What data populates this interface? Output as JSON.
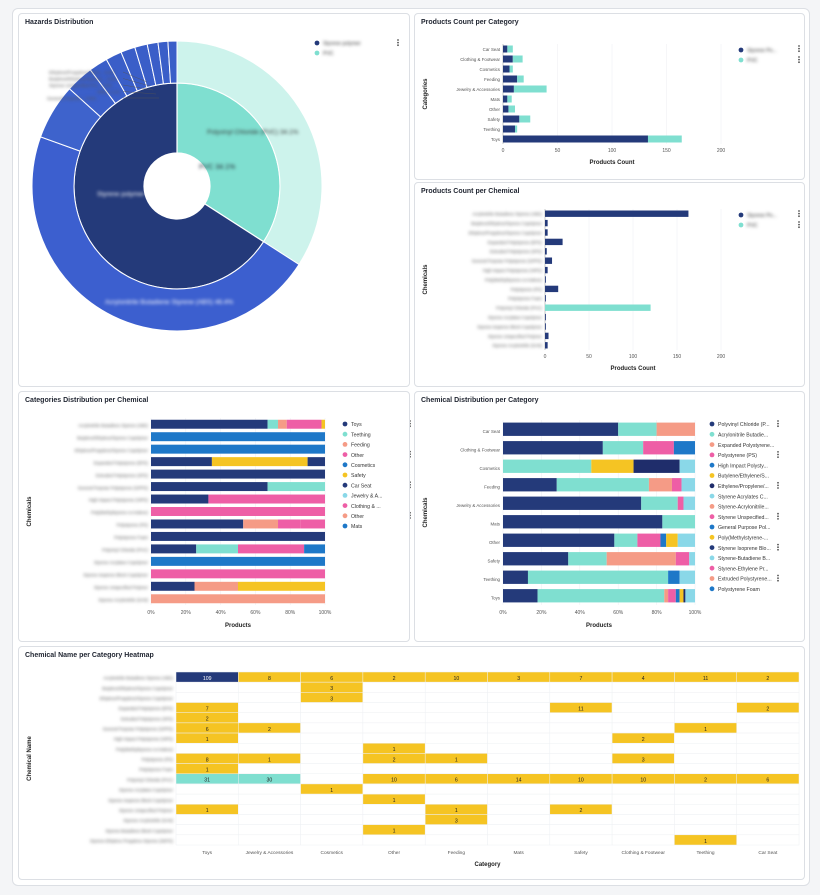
{
  "colors": {
    "navy": "#243a7a",
    "teal": "#7fdfd0",
    "salmon": "#f59b86",
    "pink": "#ee5ea6",
    "yellow": "#f5c423",
    "blue": "#1e78c8",
    "cyan": "#8ad8e8",
    "lightteal": "#cdf3ec",
    "midblue": "#3c5fcf",
    "dark": "#1f2d6b",
    "purple": "#9b6fd0"
  },
  "panels": {
    "hazards": "Hazards Distribution",
    "cat_count": "Products Count per Category",
    "chem_count": "Products Count per Chemical",
    "cat_dist": "Categories Distribution per Chemical",
    "chem_dist": "Chemical Distribution per Category",
    "heatmap": "Chemical Name per Category Heatmap"
  },
  "chart_data": [
    {
      "id": "hazards",
      "type": "pie",
      "title": "Hazards Distribution",
      "legend": [
        "Styrene polymer",
        "PVC"
      ],
      "inner": [
        {
          "label": "Styrene polymer",
          "value": 65.9
        },
        {
          "label": "PVC",
          "value": 34.1
        }
      ],
      "outer": [
        {
          "label": "Acrylonitrile Butadiene Styrene (ABS)",
          "value": 46.4
        },
        {
          "label": "Polyvinyl Chloride (PVC)",
          "value": 34.1
        },
        {
          "label": "",
          "value": 6.2
        },
        {
          "label": "",
          "value": 3.1
        },
        {
          "label": "",
          "value": 2.1
        },
        {
          "label": "",
          "value": 1.8
        },
        {
          "label": "",
          "value": 1.6
        },
        {
          "label": "",
          "value": 1.4
        },
        {
          "label": "",
          "value": 1.2
        },
        {
          "label": "",
          "value": 1.1
        },
        {
          "label": "",
          "value": 1.0
        }
      ],
      "inner_labels": [
        "Styrene polymer 65.9%",
        "PVC 34.1%"
      ],
      "outer_labels": [
        "Acrylonitrile Butadiene Styrene (ABS) 46.4%",
        "Polyvinyl Chloride (PVC) 34.1%"
      ],
      "small_labels": [
        "Ethylene/Propylene/Styre... 0.8%",
        "Butylene/Ethylene/Styrene... 0.8%",
        "Styrene Unspecified Pol... 0.8%",
        "Other 1.1%",
        "General Purpose... 0.8%"
      ]
    },
    {
      "id": "cat_count",
      "type": "bar",
      "orientation": "horizontal",
      "stacked": true,
      "title": "Products Count per Category",
      "xlabel": "Products Count",
      "ylabel": "Categories",
      "xlim": [
        0,
        200
      ],
      "xticks": [
        0,
        50,
        100,
        150,
        200
      ],
      "categories": [
        "Car Seat",
        "Clothing & Footwear",
        "Cosmetics",
        "Feeding",
        "Jewelry & Accessories",
        "Mats",
        "Other",
        "Safety",
        "Teething",
        "Toys"
      ],
      "series": [
        {
          "name": "Styrene Po...",
          "color": "#243a7a",
          "values": [
            4,
            9,
            6,
            13,
            10,
            4,
            5,
            15,
            11,
            133
          ]
        },
        {
          "name": "PVC",
          "color": "#7fdfd0",
          "values": [
            5,
            9,
            3,
            6,
            30,
            4,
            6,
            10,
            2,
            31
          ]
        }
      ]
    },
    {
      "id": "chem_count",
      "type": "bar",
      "orientation": "horizontal",
      "title": "Products Count per Chemical",
      "xlabel": "Products Count",
      "ylabel": "Chemicals",
      "xlim": [
        0,
        200
      ],
      "xticks": [
        0,
        50,
        100,
        150,
        200
      ],
      "categories": [
        "Acrylonitrile Butadiene Styrene (ABS)",
        "Butylene/Ethylene/Styrene Copolymer",
        "Ethylene/Propylene/Styrene Copolymer",
        "Expanded Polystyrene (EPS)",
        "Extruded Polystyrene (XPS)",
        "General Purpose Polystyrene (GPPS)",
        "High Impact Polystyrene (HIPS)",
        "Poly(Methylstyrene-co-Indene)",
        "Polystyrene (PS)",
        "Polystyrene Foam",
        "Polyvinyl Chloride (PVC)",
        "Styrene Acrylates Copolymer",
        "Styrene Isoprene Block Copolymer",
        "Styrene Unspecified Polymer",
        "Styrene Acrylonitrile (SAN)"
      ],
      "series": [
        {
          "name": "Styrene Po...",
          "color": "#243a7a",
          "values": [
            163,
            3,
            3,
            20,
            2,
            8,
            3,
            1,
            15,
            1,
            0,
            1,
            1,
            4,
            3
          ]
        },
        {
          "name": "PVC",
          "color": "#7fdfd0",
          "values": [
            0,
            0,
            0,
            0,
            0,
            0,
            0,
            0,
            0,
            0,
            120,
            0,
            0,
            0,
            0
          ]
        }
      ]
    },
    {
      "id": "cat_dist",
      "type": "bar",
      "orientation": "horizontal",
      "stacked": "percent",
      "title": "Categories Distribution per Chemical",
      "xlabel": "Products",
      "ylabel": "Chemicals",
      "xticks": [
        "0%",
        "20%",
        "40%",
        "60%",
        "80%",
        "100%"
      ],
      "categories": [
        "Acrylonitrile Butadiene Styrene (ABS)",
        "Butylene/Ethylene/Styrene Copolymer",
        "Ethylene/Propylene/Styrene Copolymer",
        "Expanded Polystyrene (EPS)",
        "Extruded Polystyrene (XPS)",
        "General Purpose Polystyrene (GPPS)",
        "High Impact Polystyrene (HIPS)",
        "Poly(Methylstyrene-co-Indene)",
        "Polystyrene (PS)",
        "Polystyrene Foam",
        "Polyvinyl Chloride (PVC)",
        "Styrene Acrylates Copolymer",
        "Styrene Isoprene Block Copolymer",
        "Styrene Unspecified Polymer",
        "Styrene Acrylonitrile (SAN)"
      ],
      "series": [
        {
          "name": "Toys",
          "color": "#243a7a",
          "values": [
            67,
            0,
            0,
            35,
            0,
            67,
            33,
            0,
            53,
            0,
            26,
            0,
            0,
            25,
            0
          ]
        },
        {
          "name": "Teething",
          "color": "#7fdfd0",
          "values": [
            6,
            0,
            0,
            0,
            0,
            33,
            0,
            0,
            0,
            0,
            24,
            0,
            0,
            0,
            0
          ]
        },
        {
          "name": "Feeding",
          "color": "#f59b86",
          "values": [
            5,
            0,
            0,
            0,
            0,
            0,
            0,
            0,
            20,
            0,
            0,
            0,
            0,
            25,
            100
          ]
        },
        {
          "name": "Other",
          "color": "#ee5ea6",
          "values": [
            20,
            0,
            0,
            0,
            0,
            0,
            67,
            100,
            13,
            0,
            38,
            0,
            100,
            0,
            0
          ]
        },
        {
          "name": "Cosmetics",
          "color": "#1e78c8",
          "values": [
            0,
            100,
            100,
            0,
            0,
            0,
            0,
            0,
            0,
            0,
            12,
            100,
            0,
            0,
            0
          ]
        },
        {
          "name": "Safety",
          "color": "#f5c423",
          "values": [
            2,
            0,
            0,
            55,
            0,
            0,
            0,
            0,
            0,
            0,
            0,
            0,
            0,
            50,
            0
          ]
        },
        {
          "name": "Car Seat",
          "color": "#243a7a",
          "values": [
            0,
            0,
            0,
            10,
            100,
            0,
            0,
            0,
            0,
            100,
            0,
            0,
            0,
            0,
            0
          ]
        },
        {
          "name": "Jewelry & A...",
          "color": "#8ad8e8",
          "values": [
            0,
            0,
            0,
            0,
            0,
            0,
            0,
            0,
            0,
            0,
            0,
            0,
            0,
            0,
            0
          ]
        },
        {
          "name": "Clothing & ...",
          "color": "#ee5ea6",
          "values": [
            0,
            0,
            0,
            0,
            0,
            0,
            0,
            0,
            14,
            0,
            0,
            0,
            0,
            0,
            0
          ]
        },
        {
          "name": "Other",
          "color": "#f59b86",
          "values": [
            0,
            0,
            0,
            0,
            0,
            0,
            0,
            0,
            0,
            0,
            0,
            0,
            0,
            0,
            0
          ]
        },
        {
          "name": "Mats",
          "color": "#1e78c8",
          "values": [
            0,
            0,
            0,
            0,
            0,
            0,
            0,
            0,
            0,
            0,
            0,
            0,
            0,
            0,
            0
          ]
        }
      ]
    },
    {
      "id": "chem_dist",
      "type": "bar",
      "orientation": "horizontal",
      "stacked": "percent",
      "title": "Chemical Distribution per Category",
      "xlabel": "Products",
      "ylabel": "Chemicals",
      "xticks": [
        "0%",
        "20%",
        "40%",
        "60%",
        "80%",
        "100%"
      ],
      "categories": [
        "Car Seat",
        "Clothing & Footwear",
        "Cosmetics",
        "Feeding",
        "Jewelry & Accessories",
        "Mats",
        "Other",
        "Safety",
        "Teething",
        "Toys"
      ],
      "series": [
        {
          "name": "Polyvinyl Chloride (P...",
          "color": "#243a7a",
          "values": [
            60,
            52,
            0,
            28,
            72,
            83,
            58,
            34,
            13,
            18
          ]
        },
        {
          "name": "Acrylonitrile Butadie...",
          "color": "#7fdfd0",
          "values": [
            20,
            21,
            46,
            48,
            19,
            17,
            12,
            20,
            73,
            66
          ]
        },
        {
          "name": "Expanded Polystyrene...",
          "color": "#f59b86",
          "values": [
            20,
            0,
            0,
            12,
            0,
            0,
            0,
            36,
            0,
            2
          ]
        },
        {
          "name": "Polystyrene (PS)",
          "color": "#ee5ea6",
          "values": [
            0,
            16,
            0,
            5,
            3,
            0,
            12,
            7,
            0,
            4
          ]
        },
        {
          "name": "High Impact Polysty...",
          "color": "#1e78c8",
          "values": [
            0,
            11,
            0,
            0,
            0,
            0,
            3,
            0,
            6,
            2
          ]
        },
        {
          "name": "Butylene/Ethylene/S...",
          "color": "#f5c423",
          "values": [
            0,
            0,
            22,
            0,
            0,
            0,
            6,
            0,
            0,
            2
          ]
        },
        {
          "name": "Ethylene/Propylene/...",
          "color": "#1f2d6b",
          "values": [
            0,
            0,
            24,
            0,
            0,
            0,
            0,
            0,
            0,
            1
          ]
        },
        {
          "name": "Styrene Acrylates C...",
          "color": "#8ad8e8",
          "values": [
            0,
            0,
            8,
            7,
            6,
            0,
            9,
            3,
            8,
            5
          ]
        }
      ],
      "legend": [
        "Polyvinyl Chloride (P...",
        "Acrylonitrile Butadie...",
        "Expanded Polystyrene...",
        "Polystyrene (PS)",
        "High Impact Polysty...",
        "Butylene/Ethylene/S...",
        "Ethylene/Propylene/...",
        "Styrene Acrylates C...",
        "Styrene-Acrylonitrile...",
        "Styrene Unspecified...",
        "General Purpose Pol...",
        "Poly(Methylstyrene-...",
        "Styrene Isoprene Blo...",
        "Styrene-Butadiene B...",
        "Styrene-Ethylene Pr...",
        "Extruded Polystyrene...",
        "Polystyrene Foam"
      ]
    },
    {
      "id": "heatmap",
      "type": "heatmap",
      "title": "Chemical Name per Category Heatmap",
      "xlabel": "Category",
      "ylabel": "Chemical Name",
      "x": [
        "Toys",
        "Jewelry & Accessories",
        "Cosmetics",
        "Other",
        "Feeding",
        "Mats",
        "Safety",
        "Clothing & Footwear",
        "Teething",
        "Car Seat"
      ],
      "y": [
        "Acrylonitrile Butadiene Styrene (ABS)",
        "Butylene/Ethylene/Styrene Copolymer",
        "Ethylene/Propylene/Styrene Copolymer",
        "Expanded Polystyrene (EPS)",
        "Extruded Polystyrene (XPS)",
        "General Purpose Polystyrene (GPPS)",
        "High Impact Polystyrene (HIPS)",
        "Poly(Methylstyrene-co-Indene)",
        "Polystyrene (PS)",
        "Polystyrene Foam",
        "Polyvinyl Chloride (PVC)",
        "Styrene Acrylates Copolymer",
        "Styrene Isoprene Block Copolymer",
        "Styrene Unspecified Polymer",
        "Styrene Acrylonitrile (SAN)",
        "Styrene-Butadiene Block Copolymer",
        "Styrene-Ethylene Propylene-Styrene (SEPS)"
      ],
      "values": [
        [
          109,
          8,
          6,
          2,
          10,
          3,
          7,
          4,
          11,
          2
        ],
        [
          null,
          null,
          3,
          null,
          null,
          null,
          null,
          null,
          null,
          null
        ],
        [
          null,
          null,
          3,
          null,
          null,
          null,
          null,
          null,
          null,
          null
        ],
        [
          7,
          null,
          null,
          null,
          null,
          null,
          11,
          null,
          null,
          2
        ],
        [
          2,
          null,
          null,
          null,
          null,
          null,
          null,
          null,
          null,
          null
        ],
        [
          6,
          2,
          null,
          null,
          null,
          null,
          null,
          null,
          1,
          null
        ],
        [
          1,
          null,
          null,
          null,
          null,
          null,
          null,
          2,
          null,
          null
        ],
        [
          null,
          null,
          null,
          1,
          null,
          null,
          null,
          null,
          null,
          null
        ],
        [
          8,
          1,
          null,
          2,
          1,
          null,
          null,
          3,
          null,
          null
        ],
        [
          1,
          null,
          null,
          null,
          null,
          null,
          null,
          null,
          null,
          null
        ],
        [
          31,
          30,
          null,
          10,
          6,
          14,
          10,
          10,
          2,
          6
        ],
        [
          null,
          null,
          1,
          null,
          null,
          null,
          null,
          null,
          null,
          null
        ],
        [
          null,
          null,
          null,
          1,
          null,
          null,
          null,
          null,
          null,
          null
        ],
        [
          1,
          null,
          null,
          null,
          1,
          null,
          2,
          null,
          null,
          null
        ],
        [
          null,
          null,
          null,
          null,
          3,
          null,
          null,
          null,
          null,
          null
        ],
        [
          null,
          null,
          null,
          1,
          null,
          null,
          null,
          null,
          null,
          null
        ],
        [
          null,
          null,
          null,
          null,
          null,
          null,
          null,
          null,
          1,
          null
        ]
      ]
    }
  ]
}
